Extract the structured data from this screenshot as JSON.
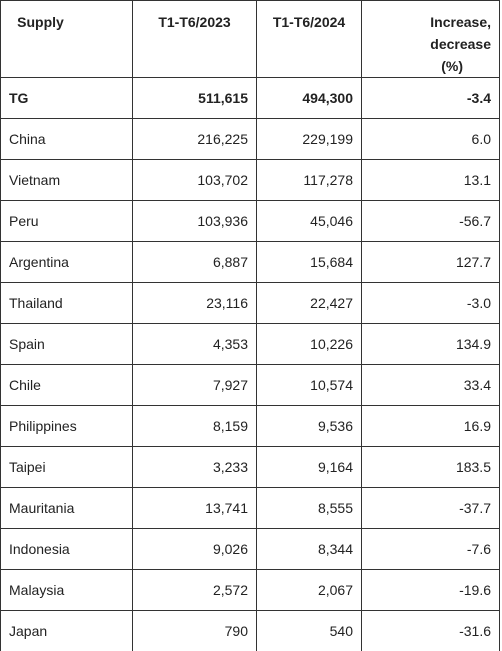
{
  "table": {
    "headers": {
      "supply": "Supply",
      "h2023": "T1-T6/2023",
      "h2024": "T1-T6/2024",
      "change_line1": "Increase, decrease",
      "change_line2": "(%)"
    },
    "rows": [
      {
        "supply": "TG",
        "y2023": "511,615",
        "y2024": "494,300",
        "change": "-3.4"
      },
      {
        "supply": "China",
        "y2023": "216,225",
        "y2024": "229,199",
        "change": "6.0"
      },
      {
        "supply": "Vietnam",
        "y2023": "103,702",
        "y2024": "117,278",
        "change": "13.1"
      },
      {
        "supply": "Peru",
        "y2023": "103,936",
        "y2024": "45,046",
        "change": "-56.7"
      },
      {
        "supply": "Argentina",
        "y2023": "6,887",
        "y2024": "15,684",
        "change": "127.7"
      },
      {
        "supply": "Thailand",
        "y2023": "23,116",
        "y2024": "22,427",
        "change": "-3.0"
      },
      {
        "supply": "Spain",
        "y2023": "4,353",
        "y2024": "10,226",
        "change": "134.9"
      },
      {
        "supply": "Chile",
        "y2023": "7,927",
        "y2024": "10,574",
        "change": "33.4"
      },
      {
        "supply": "Philippines",
        "y2023": "8,159",
        "y2024": "9,536",
        "change": "16.9"
      },
      {
        "supply": "Taipei",
        "y2023": "3,233",
        "y2024": "9,164",
        "change": "183.5"
      },
      {
        "supply": "Mauritania",
        "y2023": "13,741",
        "y2024": "8,555",
        "change": "-37.7"
      },
      {
        "supply": "Indonesia",
        "y2023": "9,026",
        "y2024": "8,344",
        "change": "-7.6"
      },
      {
        "supply": "Malaysia",
        "y2023": "2,572",
        "y2024": "2,067",
        "change": "-19.6"
      },
      {
        "supply": "Japan",
        "y2023": "790",
        "y2024": "540",
        "change": "-31.6"
      }
    ]
  }
}
